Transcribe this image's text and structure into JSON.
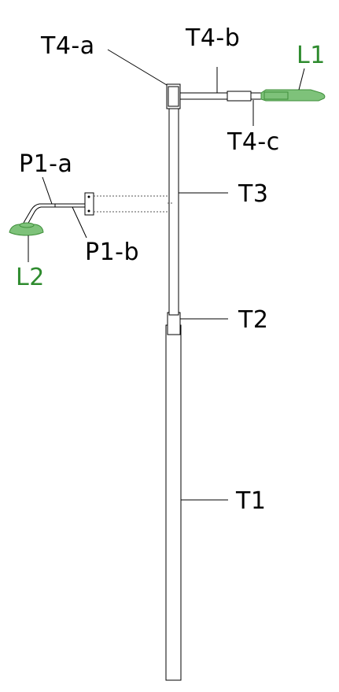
{
  "labels": {
    "t4a": "T4-a",
    "t4b": "T4-b",
    "t4c": "T4-c",
    "l1": "L1",
    "p1a": "P1-a",
    "p1b": "P1-b",
    "l2": "L2",
    "t3": "T3",
    "t2": "T2",
    "t1": "T1"
  },
  "colors": {
    "luminaire_fill": "#7ec27a",
    "luminaire_stroke": "#3f8f3b",
    "luminaire_label": "#2e8b2e",
    "line": "#000000"
  }
}
